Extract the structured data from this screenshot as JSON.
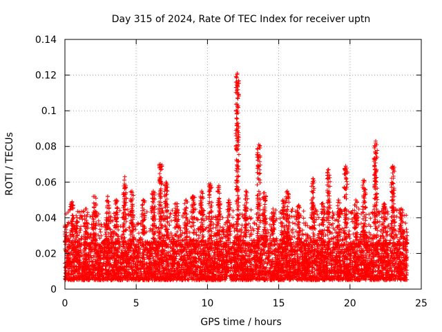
{
  "chart_data": {
    "type": "scatter",
    "title": "Day 315 of 2024, Rate Of TEC Index for receiver uptn",
    "xlabel": "GPS time / hours",
    "ylabel": "ROTI / TECUs",
    "xlim": [
      0,
      25
    ],
    "ylim": [
      0,
      0.14
    ],
    "xticks": [
      0,
      5,
      10,
      15,
      20,
      25
    ],
    "xtick_labels": [
      "0",
      "5",
      "10",
      "15",
      "20",
      "25"
    ],
    "yticks": [
      0,
      0.02,
      0.04,
      0.06,
      0.08,
      0.1,
      0.12,
      0.14
    ],
    "ytick_labels": [
      "0",
      "0.02",
      "0.04",
      "0.06",
      "0.08",
      "0.1",
      "0.12",
      "0.14"
    ],
    "grid": true,
    "marker": "+",
    "color": "#ff0000",
    "series": [
      {
        "name": "ROTI",
        "x_range": [
          0,
          24
        ],
        "typical_range": [
          0.005,
          0.025
        ],
        "background_peak": 0.045,
        "spikes": [
          {
            "x": 0.0,
            "y": 0.035
          },
          {
            "x": 0.5,
            "y": 0.049
          },
          {
            "x": 0.8,
            "y": 0.038
          },
          {
            "x": 1.5,
            "y": 0.045
          },
          {
            "x": 2.1,
            "y": 0.052
          },
          {
            "x": 3.0,
            "y": 0.052
          },
          {
            "x": 3.6,
            "y": 0.05
          },
          {
            "x": 4.2,
            "y": 0.063
          },
          {
            "x": 4.7,
            "y": 0.055
          },
          {
            "x": 5.5,
            "y": 0.05
          },
          {
            "x": 6.2,
            "y": 0.055
          },
          {
            "x": 6.7,
            "y": 0.07
          },
          {
            "x": 7.1,
            "y": 0.06
          },
          {
            "x": 7.8,
            "y": 0.048
          },
          {
            "x": 8.5,
            "y": 0.05
          },
          {
            "x": 9.0,
            "y": 0.052
          },
          {
            "x": 9.6,
            "y": 0.055
          },
          {
            "x": 10.2,
            "y": 0.059
          },
          {
            "x": 10.8,
            "y": 0.058
          },
          {
            "x": 11.5,
            "y": 0.05
          },
          {
            "x": 12.1,
            "y": 0.121
          },
          {
            "x": 12.7,
            "y": 0.055
          },
          {
            "x": 13.6,
            "y": 0.081
          },
          {
            "x": 14.0,
            "y": 0.054
          },
          {
            "x": 14.6,
            "y": 0.045
          },
          {
            "x": 15.3,
            "y": 0.05
          },
          {
            "x": 15.6,
            "y": 0.055
          },
          {
            "x": 16.4,
            "y": 0.047
          },
          {
            "x": 17.4,
            "y": 0.062
          },
          {
            "x": 18.1,
            "y": 0.048
          },
          {
            "x": 18.5,
            "y": 0.067
          },
          {
            "x": 19.2,
            "y": 0.05
          },
          {
            "x": 19.7,
            "y": 0.069
          },
          {
            "x": 20.4,
            "y": 0.05
          },
          {
            "x": 21.0,
            "y": 0.061
          },
          {
            "x": 21.8,
            "y": 0.083
          },
          {
            "x": 22.4,
            "y": 0.048
          },
          {
            "x": 23.0,
            "y": 0.069
          },
          {
            "x": 23.6,
            "y": 0.045
          },
          {
            "x": 24.0,
            "y": 0.03
          }
        ]
      }
    ]
  }
}
